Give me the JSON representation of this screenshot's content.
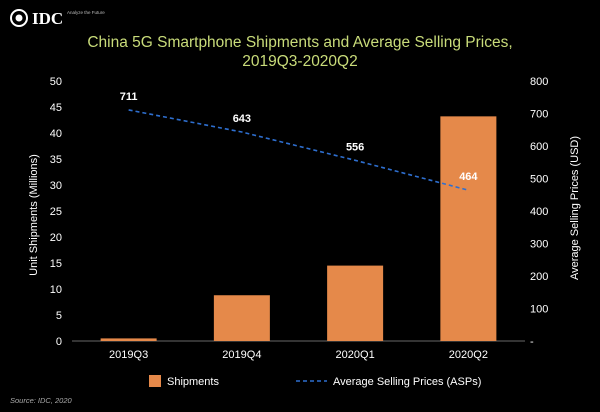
{
  "logo": {
    "text": "IDC",
    "tagline": "Analyze the Future"
  },
  "chart_data": {
    "type": "bar+line",
    "title": "China 5G Smartphone Shipments and Average Selling Prices,",
    "title_line2": "2019Q3-2020Q2",
    "categories": [
      "2019Q3",
      "2019Q4",
      "2020Q1",
      "2020Q2"
    ],
    "series": [
      {
        "name": "Shipments",
        "type": "bar",
        "axis": "left",
        "color": "#E5894A",
        "values": [
          0.5,
          8.8,
          14.5,
          43.2
        ]
      },
      {
        "name": "Average Selling Prices (ASPs)",
        "type": "line",
        "axis": "right",
        "color": "#2E6FD0",
        "values": [
          711,
          643,
          556,
          464
        ],
        "labels": [
          "711",
          "643",
          "556",
          "464"
        ]
      }
    ],
    "ylabel": "Unit Shipments (Millions)",
    "y2label": "Average Selling Prices (USD)",
    "ylim": [
      0,
      50
    ],
    "y2lim": [
      0,
      800
    ],
    "yticks": [
      "0",
      "5",
      "10",
      "15",
      "20",
      "25",
      "30",
      "35",
      "40",
      "45",
      "50"
    ],
    "y2ticks": [
      "-",
      "100",
      "200",
      "300",
      "400",
      "500",
      "600",
      "700",
      "800"
    ],
    "legend": {
      "position": "bottom",
      "items": [
        "Shipments",
        "Average Selling Prices (ASPs)"
      ]
    },
    "source": "Source: IDC, 2020"
  }
}
